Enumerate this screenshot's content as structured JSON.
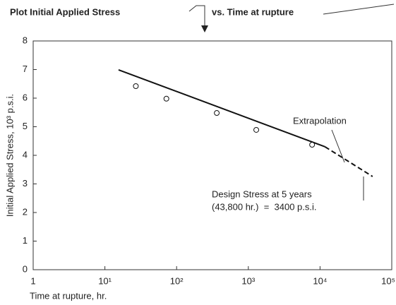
{
  "chart_data": {
    "type": "scatter",
    "title": "Plot Initial Applied Stress",
    "subtitle": "vs. Time at rupture",
    "x_label": "Time at rupture, hr.",
    "y_label": "Initial Applied Stress, 10³ p.s.i.",
    "log_x": true,
    "grid": false,
    "color": "#111111",
    "xlim": [
      1,
      100000
    ],
    "xticks": [
      1,
      {
        "value": 10,
        "label": "10¹"
      },
      {
        "value": 100,
        "label": "10²"
      },
      {
        "value": 1000,
        "label": "10³"
      },
      {
        "value": 10000,
        "label": "10⁴"
      },
      {
        "value": 100000,
        "label": "10⁵"
      }
    ],
    "ylim": [
      0,
      8
    ],
    "yticks": [
      0,
      1,
      2,
      3,
      4,
      5,
      6,
      7,
      8
    ],
    "points": {
      "x": [
        27,
        72,
        363,
        1290,
        7750
      ],
      "y": [
        6.42,
        5.98,
        5.48,
        4.89,
        4.37
      ]
    },
    "fit": {
      "x": [
        15.5,
        11700
      ],
      "y": [
        6.99,
        4.3
      ]
    },
    "extrapolation": {
      "x": [
        11700,
        54000
      ],
      "y": [
        4.3,
        3.26
      ]
    },
    "annotations": [
      "Extrapolation",
      "Design Stress at 5 years",
      "(43,800 hr.)  =  3400 p.s.i."
    ]
  }
}
